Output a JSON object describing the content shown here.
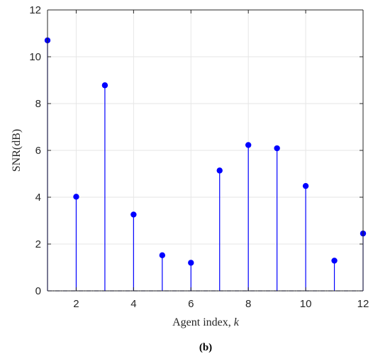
{
  "chart_data": {
    "type": "stem",
    "x": [
      1,
      2,
      3,
      4,
      5,
      6,
      7,
      8,
      9,
      10,
      11,
      12
    ],
    "series": [
      {
        "values": [
          10.7,
          4.02,
          8.78,
          3.26,
          1.52,
          1.2,
          5.14,
          6.23,
          6.09,
          4.48,
          1.29,
          2.45
        ]
      }
    ],
    "xlabel": "Agent index, ",
    "xlabel_var": "k",
    "ylabel": "SNR(dB)",
    "xlim": [
      1,
      12
    ],
    "ylim": [
      0,
      12
    ],
    "xticks": [
      2,
      4,
      6,
      8,
      10,
      12
    ],
    "yticks": [
      0,
      2,
      4,
      6,
      8,
      10,
      12
    ],
    "grid": true,
    "colors": {
      "stem": "#0000ff",
      "axes": "#262626",
      "grid": "#e6e6e6",
      "baseline": "#5a5aa0"
    }
  },
  "caption": "(b)"
}
